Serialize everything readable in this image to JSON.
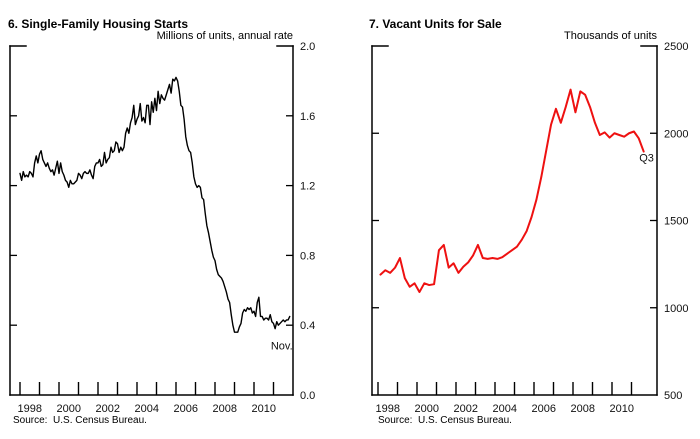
{
  "page": {
    "background": "#ffffff",
    "text_color": "#000000"
  },
  "chart_data": [
    {
      "type": "line",
      "title": "6. Single-Family Housing Starts",
      "unit_label": "Millions of units, annual rate",
      "source": "Source:  U.S. Census Bureau.",
      "series_name": "Single-family housing starts",
      "frequency": "monthly",
      "x_start": 1998.0,
      "x_step": 0.0833333,
      "xlim": [
        1997.5,
        2012.0
      ],
      "ylim": [
        0.0,
        2.0
      ],
      "grid": false,
      "legend": "none",
      "line_color": "#000000",
      "end_label": "Nov.",
      "x_ticks": [
        1998,
        1999,
        2000,
        2001,
        2002,
        2003,
        2004,
        2005,
        2006,
        2007,
        2008,
        2009,
        2010,
        2011
      ],
      "x_tick_labels": [
        {
          "year": 1998,
          "label": "1998"
        },
        {
          "year": 2000,
          "label": "2000"
        },
        {
          "year": 2002,
          "label": "2002"
        },
        {
          "year": 2004,
          "label": "2004"
        },
        {
          "year": 2006,
          "label": "2006"
        },
        {
          "year": 2008,
          "label": "2008"
        },
        {
          "year": 2010,
          "label": "2010"
        }
      ],
      "y_ticks": [
        {
          "v": 2.0,
          "label": "2.0"
        },
        {
          "v": 1.6,
          "label": "1.6"
        },
        {
          "v": 1.2,
          "label": "1.2"
        },
        {
          "v": 0.8,
          "label": "0.8"
        },
        {
          "v": 0.4,
          "label": "0.4"
        },
        {
          "v": 0.0,
          "label": "0.0"
        }
      ],
      "values": [
        1.27,
        1.23,
        1.28,
        1.25,
        1.26,
        1.25,
        1.28,
        1.27,
        1.25,
        1.33,
        1.37,
        1.33,
        1.38,
        1.4,
        1.35,
        1.33,
        1.31,
        1.33,
        1.3,
        1.28,
        1.29,
        1.26,
        1.3,
        1.34,
        1.27,
        1.33,
        1.28,
        1.26,
        1.23,
        1.22,
        1.19,
        1.23,
        1.21,
        1.21,
        1.22,
        1.23,
        1.27,
        1.26,
        1.24,
        1.27,
        1.28,
        1.27,
        1.27,
        1.29,
        1.26,
        1.24,
        1.31,
        1.33,
        1.33,
        1.35,
        1.31,
        1.32,
        1.39,
        1.33,
        1.35,
        1.36,
        1.42,
        1.39,
        1.4,
        1.45,
        1.44,
        1.39,
        1.42,
        1.4,
        1.42,
        1.5,
        1.53,
        1.5,
        1.56,
        1.59,
        1.66,
        1.55,
        1.58,
        1.6,
        1.67,
        1.57,
        1.59,
        1.56,
        1.66,
        1.66,
        1.55,
        1.68,
        1.62,
        1.7,
        1.63,
        1.74,
        1.67,
        1.72,
        1.7,
        1.69,
        1.72,
        1.75,
        1.78,
        1.73,
        1.81,
        1.8,
        1.82,
        1.8,
        1.74,
        1.66,
        1.65,
        1.58,
        1.48,
        1.43,
        1.4,
        1.39,
        1.33,
        1.25,
        1.21,
        1.19,
        1.2,
        1.19,
        1.13,
        1.12,
        1.04,
        0.97,
        0.93,
        0.88,
        0.83,
        0.79,
        0.77,
        0.72,
        0.69,
        0.68,
        0.67,
        0.65,
        0.62,
        0.59,
        0.55,
        0.53,
        0.46,
        0.4,
        0.36,
        0.36,
        0.36,
        0.39,
        0.41,
        0.47,
        0.49,
        0.48,
        0.5,
        0.49,
        0.5,
        0.47,
        0.48,
        0.45,
        0.53,
        0.56,
        0.45,
        0.45,
        0.43,
        0.44,
        0.44,
        0.43,
        0.46,
        0.42,
        0.41,
        0.38,
        0.42,
        0.4,
        0.41,
        0.42,
        0.43,
        0.42,
        0.43,
        0.43,
        0.45
      ]
    },
    {
      "type": "line",
      "title": "7. Vacant Units for Sale",
      "unit_label": "Thousands of units",
      "source": "Source:  U.S. Census Bureau.",
      "series_name": "Vacant units for sale",
      "frequency": "quarterly",
      "x_start": 1998.125,
      "x_step": 0.25,
      "xlim": [
        1997.5,
        2012.0
      ],
      "ylim": [
        500,
        2500
      ],
      "grid": false,
      "legend": "none",
      "line_color": "#ee1111",
      "end_label": "Q3",
      "x_ticks": [
        1998,
        1999,
        2000,
        2001,
        2002,
        2003,
        2004,
        2005,
        2006,
        2007,
        2008,
        2009,
        2010,
        2011
      ],
      "x_tick_labels": [
        {
          "year": 1998,
          "label": "1998"
        },
        {
          "year": 2000,
          "label": "2000"
        },
        {
          "year": 2002,
          "label": "2002"
        },
        {
          "year": 2004,
          "label": "2004"
        },
        {
          "year": 2006,
          "label": "2006"
        },
        {
          "year": 2008,
          "label": "2008"
        },
        {
          "year": 2010,
          "label": "2010"
        }
      ],
      "y_ticks": [
        {
          "v": 2500,
          "label": "2500"
        },
        {
          "v": 2000,
          "label": "2000"
        },
        {
          "v": 1500,
          "label": "1500"
        },
        {
          "v": 1000,
          "label": "1000"
        },
        {
          "v": 500,
          "label": "500"
        }
      ],
      "values": [
        1190,
        1215,
        1200,
        1230,
        1285,
        1170,
        1120,
        1140,
        1090,
        1140,
        1130,
        1135,
        1330,
        1360,
        1230,
        1255,
        1200,
        1235,
        1260,
        1300,
        1360,
        1285,
        1280,
        1285,
        1280,
        1290,
        1310,
        1330,
        1350,
        1390,
        1440,
        1520,
        1620,
        1750,
        1900,
        2050,
        2140,
        2060,
        2150,
        2250,
        2120,
        2240,
        2220,
        2150,
        2060,
        1990,
        2005,
        1975,
        2000,
        1990,
        1980,
        2000,
        2010,
        1970,
        1895
      ]
    }
  ]
}
